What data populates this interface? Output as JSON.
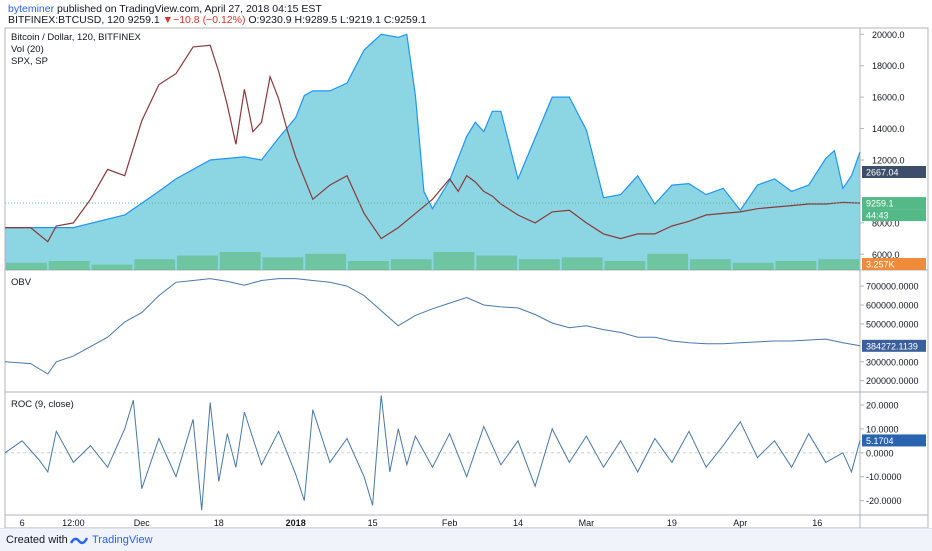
{
  "header": {
    "author": "byteminer",
    "published": " published on TradingView.com, April 27, 2018 04:15 EST",
    "symbol": "BITFINEX:BTCUSD, 120",
    "price": "9259.1",
    "arrow": "▼",
    "change": "−10.8 (−0.12%)",
    "ohlc": "O:9230.9 H:9289.5 L:9219.1 C:9259.1"
  },
  "footer": {
    "created": "Created with",
    "brand": "TradingView"
  },
  "colors": {
    "price_line": "#8a3a3a",
    "spx_fill": "#66c7d9",
    "spx_line": "#2196f3",
    "volume": "#4caf50",
    "indicator": "#4a78a8",
    "last_price_bg": "#53b987",
    "spx_label_bg": "#3d4e6a",
    "obv_label_bg": "#3a5f9a",
    "roc_label_bg": "#2a64b0",
    "vol_label_bg": "#ef8b3a"
  },
  "chart_data": [
    {
      "type": "line",
      "pane": "main",
      "legend": [
        "Bitcoin / Dollar, 120, BITFINEX",
        "Vol (20)",
        "SPX, SP"
      ],
      "x_tick_labels": [
        "6",
        "12:00",
        "Dec",
        "18",
        "2018",
        "15",
        "Feb",
        "14",
        "Mar",
        "19",
        "Apr",
        "16"
      ],
      "y_tick_labels": [
        "20000.0",
        "18000.0",
        "16000.0",
        "14000.0",
        "12000.0",
        "8000.0",
        "6000.0"
      ],
      "ylim": [
        5000,
        20400
      ],
      "x_range": [
        0,
        100
      ],
      "series": [
        {
          "style": "candles/line",
          "x": [
            0,
            3,
            5,
            6,
            8,
            10,
            12,
            14,
            16,
            18,
            20,
            22,
            24,
            25,
            26,
            27,
            28,
            29,
            30,
            31,
            32,
            33,
            34,
            36,
            38,
            40,
            42,
            44,
            46,
            48,
            50,
            52,
            53,
            54,
            55,
            56,
            57,
            58,
            60,
            62,
            64,
            66,
            68,
            70,
            72,
            74,
            76,
            78,
            80,
            82,
            84,
            86,
            88,
            90,
            92,
            94,
            96,
            98,
            100
          ],
          "values": [
            7700,
            7700,
            6800,
            7800,
            8000,
            9500,
            11400,
            11000,
            14500,
            16800,
            17500,
            19200,
            19300,
            17600,
            15500,
            13000,
            16500,
            13800,
            14400,
            17300,
            15900,
            13900,
            12200,
            9500,
            10400,
            11000,
            8600,
            7000,
            7700,
            8600,
            9500,
            10800,
            10000,
            11000,
            10600,
            10000,
            9700,
            9200,
            8500,
            8000,
            8700,
            8800,
            8000,
            7300,
            7000,
            7300,
            7300,
            7800,
            8100,
            8500,
            8600,
            8700,
            8900,
            9000,
            9100,
            9200,
            9200,
            9300,
            9259.1
          ]
        },
        {
          "name": "SPX",
          "style": "area",
          "x": [
            0,
            8,
            14,
            18,
            20,
            24,
            28,
            30,
            32,
            34,
            35,
            36,
            38,
            40,
            42,
            44,
            46,
            47,
            48,
            49,
            50,
            52,
            54,
            55,
            56,
            57,
            58,
            60,
            62,
            64,
            66,
            68,
            70,
            72,
            74,
            76,
            78,
            80,
            82,
            84,
            86,
            88,
            90,
            92,
            94,
            96,
            97,
            98,
            99,
            100
          ],
          "values": [
            7700,
            7700,
            8500,
            10000,
            10800,
            12000,
            12200,
            12000,
            13400,
            14700,
            16100,
            16400,
            16400,
            16900,
            19000,
            20000,
            19800,
            20000,
            16100,
            10000,
            8900,
            10700,
            13500,
            14400,
            13800,
            15100,
            15100,
            10800,
            13400,
            16000,
            16000,
            13900,
            9600,
            9800,
            11000,
            9200,
            10400,
            10500,
            9800,
            10200,
            8800,
            10400,
            10800,
            10000,
            10400,
            12100,
            12600,
            10200,
            11000,
            12500
          ]
        },
        {
          "name": "Vol (20)",
          "style": "histogram",
          "values": [
            0.4,
            0.5,
            0.3,
            0.6,
            0.8,
            1.0,
            0.7,
            0.9,
            0.5,
            0.6,
            1.0,
            0.8,
            0.6,
            0.7,
            0.5,
            0.9,
            0.6,
            0.4,
            0.5,
            0.6
          ]
        }
      ],
      "labels": {
        "spx_value": "2667.04",
        "last_price": "9259.1",
        "countdown": "44:43",
        "volume_value": "3.257K"
      }
    },
    {
      "type": "line",
      "pane": "obv",
      "legend": [
        "OBV"
      ],
      "y_tick_labels": [
        "700000.0000",
        "600000.0000",
        "500000.0000",
        "300000.0000",
        "200000.0000"
      ],
      "ylim": [
        140000,
        780000
      ],
      "x": [
        0,
        3,
        5,
        6,
        8,
        10,
        12,
        14,
        16,
        18,
        20,
        22,
        24,
        26,
        28,
        30,
        32,
        34,
        36,
        38,
        40,
        42,
        44,
        46,
        48,
        50,
        52,
        54,
        56,
        58,
        60,
        62,
        64,
        66,
        68,
        70,
        72,
        74,
        76,
        78,
        80,
        82,
        84,
        86,
        88,
        90,
        92,
        94,
        96,
        98,
        100
      ],
      "values": [
        300000,
        290000,
        235000,
        300000,
        330000,
        380000,
        430000,
        510000,
        560000,
        650000,
        720000,
        730000,
        740000,
        725000,
        705000,
        730000,
        740000,
        740000,
        730000,
        720000,
        700000,
        650000,
        570000,
        490000,
        545000,
        580000,
        610000,
        640000,
        600000,
        590000,
        585000,
        550000,
        505000,
        480000,
        490000,
        470000,
        455000,
        430000,
        430000,
        410000,
        400000,
        395000,
        395000,
        400000,
        405000,
        410000,
        410000,
        415000,
        420000,
        400000,
        384272.1139
      ],
      "labels": {
        "last_value": "384272.1139"
      }
    },
    {
      "type": "line",
      "pane": "roc",
      "legend": [
        "ROC (9, close)"
      ],
      "y_tick_labels": [
        "20.0000",
        "10.0000",
        "0.0000",
        "-10.0000",
        "-20.0000"
      ],
      "ylim": [
        -26,
        25
      ],
      "x": [
        0,
        2,
        4,
        5,
        6,
        8,
        10,
        12,
        14,
        15,
        16,
        18,
        20,
        22,
        23,
        24,
        25,
        26,
        27,
        28,
        30,
        32,
        34,
        35,
        36,
        38,
        40,
        42,
        43,
        44,
        45,
        46,
        47,
        48,
        50,
        52,
        54,
        56,
        58,
        60,
        62,
        64,
        66,
        68,
        70,
        72,
        74,
        76,
        78,
        80,
        82,
        84,
        86,
        88,
        90,
        92,
        94,
        96,
        98,
        99,
        100
      ],
      "values": [
        0,
        5,
        -3,
        -8,
        9,
        -4,
        3,
        -6,
        10,
        22,
        -15,
        6,
        -10,
        14,
        -24,
        21,
        -12,
        8,
        -6,
        17,
        -5,
        9,
        -9,
        -20,
        18,
        -4,
        6,
        -10,
        -22,
        24,
        -8,
        10,
        -5,
        7,
        -6,
        8,
        -10,
        11,
        -5,
        5,
        -14,
        10,
        -4,
        7,
        -6,
        5,
        -8,
        6,
        -4,
        9,
        -6,
        3,
        13,
        -2,
        5,
        -6,
        8,
        -4,
        0,
        -8,
        5.1704
      ],
      "labels": {
        "last_value": "5.1704"
      }
    }
  ]
}
